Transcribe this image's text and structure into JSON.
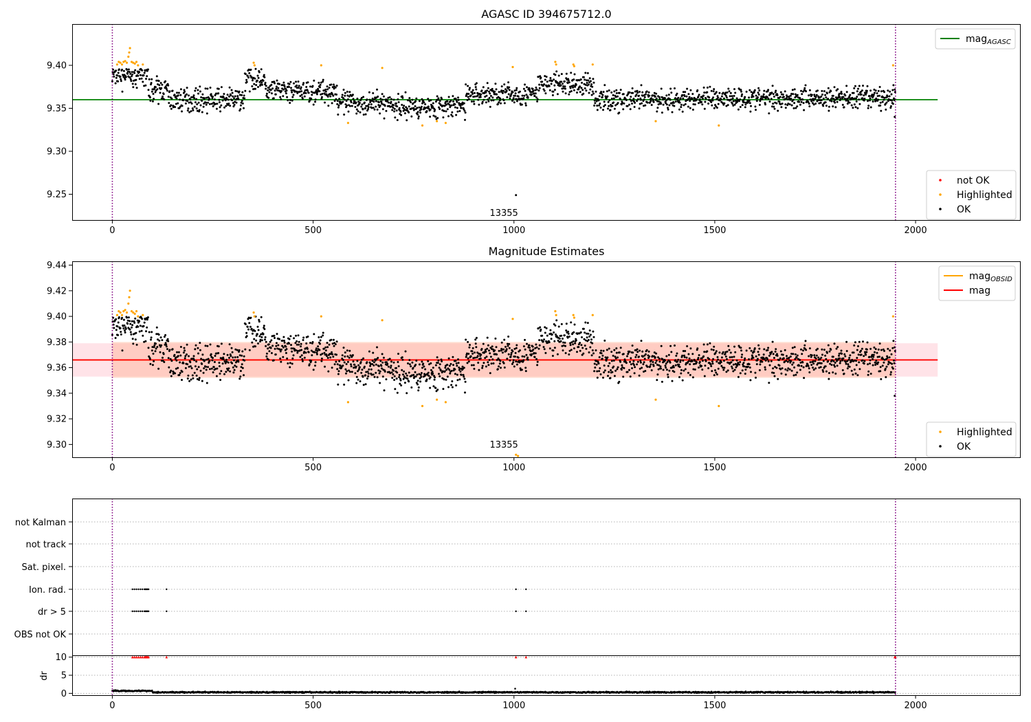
{
  "figure": {
    "background": "#ffffff"
  },
  "colors": {
    "ok": "#000000",
    "highlighted": "#ffa500",
    "not_ok": "#ff0000",
    "agasc_line": "#008000",
    "mag_line": "#ff0000",
    "obsid_line": "#ffa500",
    "band_outer": "#ffc0cb",
    "band_inner": "#ffa07a",
    "vline": "#800080"
  },
  "chart_data": [
    {
      "type": "scatter",
      "title": "AGASC ID 394675712.0",
      "xlim": [
        -100,
        2260
      ],
      "ylim": [
        9.22,
        9.448
      ],
      "xticks": [
        0,
        500,
        1000,
        1500,
        2000
      ],
      "yticks": [
        9.25,
        9.3,
        9.35,
        9.4
      ],
      "ytick_labels": [
        "9.25",
        "9.30",
        "9.35",
        "9.40"
      ],
      "hlines": [
        {
          "name": "mag",
          "sub": "AGASC",
          "y": 9.36,
          "x_range": [
            -100,
            2055
          ],
          "color": "#008000"
        }
      ],
      "vlines": [
        0,
        1950
      ],
      "annotations": [
        {
          "text": "13355",
          "x": 975,
          "y": 9.228
        }
      ],
      "legend_top": {
        "position": "upper right",
        "entries": [
          {
            "label": "mag",
            "sub": "AGASC",
            "kind": "line",
            "color": "#008000"
          }
        ]
      },
      "legend_bottom": {
        "position": "lower right",
        "entries": [
          {
            "label": "not OK",
            "kind": "marker",
            "color": "#ff0000"
          },
          {
            "label": "Highlighted",
            "kind": "marker",
            "color": "#ffa500"
          },
          {
            "label": "OK",
            "kind": "marker",
            "color": "#000000"
          }
        ]
      },
      "series": [
        {
          "name": "OK",
          "count": 1950,
          "x_range": [
            0,
            1950
          ],
          "baseline": 9.362,
          "scatter": 0.012,
          "segments": [
            {
              "x": [
                0,
                90
              ],
              "mean": 9.388
            },
            {
              "x": [
                90,
                140
              ],
              "mean": 9.372
            },
            {
              "x": [
                140,
                330
              ],
              "mean": 9.36
            },
            {
              "x": [
                330,
                380
              ],
              "mean": 9.385
            },
            {
              "x": [
                380,
                560
              ],
              "mean": 9.37
            },
            {
              "x": [
                560,
                700
              ],
              "mean": 9.356
            },
            {
              "x": [
                700,
                880
              ],
              "mean": 9.352
            },
            {
              "x": [
                880,
                1060
              ],
              "mean": 9.366
            },
            {
              "x": [
                1060,
                1200
              ],
              "mean": 9.378
            },
            {
              "x": [
                1200,
                1450
              ],
              "mean": 9.36
            },
            {
              "x": [
                1450,
                1950
              ],
              "mean": 9.362
            }
          ],
          "outliers": [
            {
              "x": 1005,
              "y": 9.249
            },
            {
              "x": 1948,
              "y": 9.34
            }
          ]
        },
        {
          "name": "Highlighted",
          "points": [
            [
              12,
              9.401
            ],
            [
              16,
              9.404
            ],
            [
              20,
              9.403
            ],
            [
              24,
              9.401
            ],
            [
              28,
              9.404
            ],
            [
              32,
              9.405
            ],
            [
              36,
              9.403
            ],
            [
              40,
              9.41
            ],
            [
              42,
              9.415
            ],
            [
              44,
              9.42
            ],
            [
              48,
              9.404
            ],
            [
              52,
              9.403
            ],
            [
              56,
              9.402
            ],
            [
              60,
              9.404
            ],
            [
              64,
              9.4
            ],
            [
              76,
              9.401
            ],
            [
              352,
              9.403
            ],
            [
              354,
              9.4
            ],
            [
              520,
              9.4
            ],
            [
              587,
              9.333
            ],
            [
              672,
              9.397
            ],
            [
              772,
              9.33
            ],
            [
              808,
              9.335
            ],
            [
              830,
              9.333
            ],
            [
              997,
              9.398
            ],
            [
              1103,
              9.404
            ],
            [
              1105,
              9.401
            ],
            [
              1148,
              9.401
            ],
            [
              1150,
              9.399
            ],
            [
              1196,
              9.401
            ],
            [
              1353,
              9.335
            ],
            [
              1510,
              9.33
            ],
            [
              1944,
              9.4
            ]
          ]
        }
      ]
    },
    {
      "type": "scatter",
      "title": "Magnitude Estimates",
      "xlim": [
        -100,
        2260
      ],
      "ylim": [
        9.29,
        9.443
      ],
      "xticks": [
        0,
        500,
        1000,
        1500,
        2000
      ],
      "yticks": [
        9.3,
        9.32,
        9.34,
        9.36,
        9.38,
        9.4,
        9.42,
        9.44
      ],
      "ytick_labels": [
        "9.30",
        "9.32",
        "9.34",
        "9.36",
        "9.38",
        "9.40",
        "9.42",
        "9.44"
      ],
      "hlines": [
        {
          "name": "mag",
          "sub": "OBSID",
          "y": 9.366,
          "x_range": [
            -100,
            1950
          ],
          "color": "#ffa500"
        },
        {
          "name": "mag",
          "sub": "",
          "y": 9.366,
          "x_range": [
            -100,
            2055
          ],
          "color": "#ff0000"
        }
      ],
      "bands": [
        {
          "y": [
            9.353,
            9.379
          ],
          "x_range": [
            -100,
            2055
          ],
          "color": "#ffc0cb",
          "opacity": 0.45
        },
        {
          "y": [
            9.352,
            9.38
          ],
          "x_range": [
            0,
            1950
          ],
          "color": "#ffa07a",
          "opacity": 0.35
        }
      ],
      "vlines": [
        0,
        1950
      ],
      "annotations": [
        {
          "text": "13355",
          "x": 975,
          "y": 9.2955
        }
      ],
      "legend_top": {
        "position": "upper right",
        "entries": [
          {
            "label": "mag",
            "sub": "OBSID",
            "kind": "line",
            "color": "#ffa500"
          },
          {
            "label": "mag",
            "sub": "",
            "kind": "line",
            "color": "#ff0000"
          }
        ]
      },
      "legend_bottom": {
        "position": "lower right",
        "entries": [
          {
            "label": "Highlighted",
            "kind": "marker",
            "color": "#ffa500"
          },
          {
            "label": "OK",
            "kind": "marker",
            "color": "#000000"
          }
        ]
      },
      "series": [
        {
          "name": "OK",
          "same_as_panel": 0,
          "outliers": [
            {
              "x": 1948,
              "y": 9.338
            }
          ]
        },
        {
          "name": "Highlighted",
          "same_as_panel": 0,
          "extra_points": [
            [
              1005,
              9.292
            ],
            [
              1010,
              9.291
            ]
          ]
        }
      ]
    },
    {
      "type": "scatter",
      "title": "",
      "xlim": [
        -100,
        2260
      ],
      "flag_rows": [
        "not Kalman",
        "not track",
        "Sat. pixel.",
        "Ion. rad.",
        "dr > 5",
        "OBS not OK"
      ],
      "flag_points": {
        "Ion. rad.": [
          50,
          55,
          60,
          65,
          70,
          75,
          80,
          82,
          84,
          86,
          88,
          90,
          135,
          1005,
          1030
        ],
        "dr > 5": [
          50,
          55,
          60,
          65,
          70,
          75,
          80,
          82,
          84,
          86,
          88,
          90,
          135,
          1005,
          1030
        ]
      },
      "vlines": [
        0,
        1950
      ]
    },
    {
      "type": "scatter",
      "title": "",
      "xlim": [
        -100,
        2260
      ],
      "ylim": [
        -0.5,
        10.5
      ],
      "xticks": [
        0,
        500,
        1000,
        1500,
        2000
      ],
      "yticks": [
        0,
        5,
        10
      ],
      "ylabel": "dr",
      "series": [
        {
          "name": "dr",
          "count": 1950,
          "x_range": [
            0,
            1950
          ],
          "baseline": 0.3,
          "scatter": 0.15,
          "early_mean": 0.7,
          "outliers": [
            {
              "x": 1003,
              "y": 1.3
            }
          ]
        },
        {
          "name": "clipped",
          "y": 10,
          "x": [
            50,
            55,
            60,
            65,
            70,
            75,
            80,
            82,
            84,
            86,
            88,
            90,
            135,
            1005,
            1030,
            1948,
            1950
          ]
        }
      ],
      "vlines": [
        0,
        1950
      ]
    }
  ]
}
